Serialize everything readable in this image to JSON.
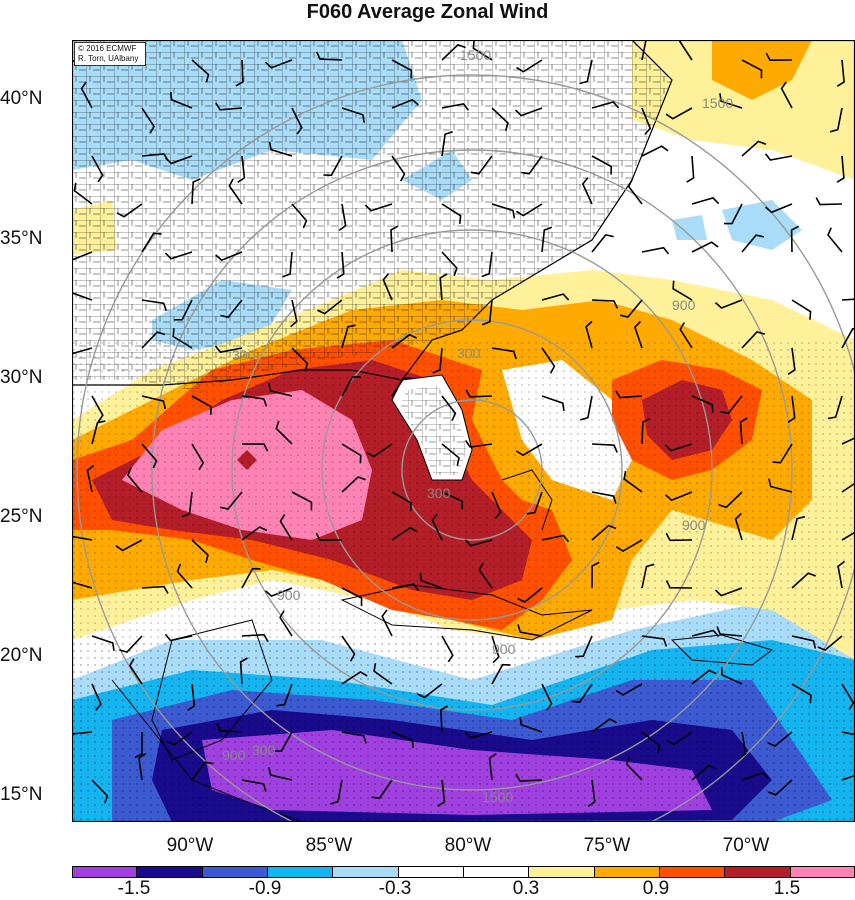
{
  "title": "F060 Average Zonal Wind",
  "credit": {
    "line1": "© 2016 ECMWF",
    "line2": "R. Torn, UAlbany"
  },
  "lat_labels": [
    "40°N",
    "35°N",
    "30°N",
    "25°N",
    "20°N",
    "15°N"
  ],
  "lon_labels": [
    "90°W",
    "85°W",
    "80°W",
    "75°W",
    "70°W"
  ],
  "contour_labels": [
    "1500",
    "1500",
    "1500",
    "900",
    "900",
    "900",
    "900",
    "300",
    "300",
    "300",
    "900",
    "300"
  ],
  "colorbar": {
    "colors": [
      "#a040e0",
      "#1a0a8c",
      "#3c5ad2",
      "#14b4f0",
      "#a8dcf8",
      "#ffffff",
      "#ffffff",
      "#fff09a",
      "#ffaa00",
      "#ff5000",
      "#b41e28",
      "#ff82b4"
    ],
    "labels": [
      "-1.5",
      "-0.9",
      "-0.3",
      "0.3",
      "0.9",
      "1.5"
    ]
  },
  "fill_colors": {
    "light_blue": "#a8dcf8",
    "cyan": "#14b4f0",
    "mid_blue": "#3c5ad2",
    "navy": "#1a0a8c",
    "purple": "#a040e0",
    "yellow": "#fff09a",
    "orange": "#ffaa00",
    "red": "#ff5000",
    "dark_red": "#b41e28",
    "pink": "#ff82b4"
  }
}
